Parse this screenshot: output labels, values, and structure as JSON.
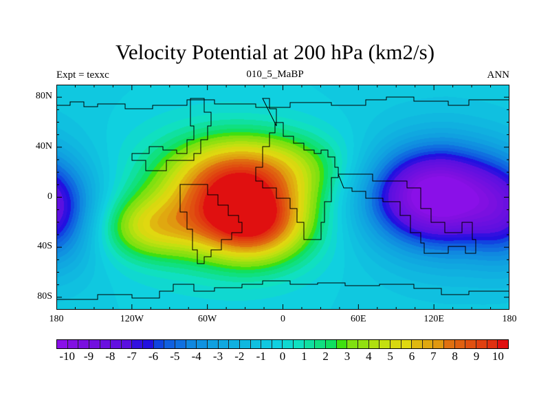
{
  "chart_data": {
    "type": "heatmap",
    "subtype": "filled-contour-map",
    "title": "Velocity Potential at 200 hPa (km2/s)",
    "left_string": "Expt = texxc",
    "center_string": "010_5_MaBP",
    "right_string": "ANN",
    "xlim": [
      -180,
      180
    ],
    "ylim": [
      -90,
      90
    ],
    "x_ticks": [
      {
        "value": -180,
        "label": "180"
      },
      {
        "value": -120,
        "label": "120W"
      },
      {
        "value": -60,
        "label": "60W"
      },
      {
        "value": 0,
        "label": "0"
      },
      {
        "value": 60,
        "label": "60E"
      },
      {
        "value": 120,
        "label": "120E"
      },
      {
        "value": 180,
        "label": "180"
      }
    ],
    "y_ticks": [
      {
        "value": 80,
        "label": "80N"
      },
      {
        "value": 40,
        "label": "40N"
      },
      {
        "value": 0,
        "label": "0"
      },
      {
        "value": -40,
        "label": "40S"
      },
      {
        "value": -80,
        "label": "80S"
      }
    ],
    "contour_levels_start": -10,
    "contour_levels_end": 10,
    "contour_interval": 0.5,
    "colorbar_labels": [
      "-10",
      "-9",
      "-8",
      "-7",
      "-6",
      "-5",
      "-4",
      "-3",
      "-2",
      "-1",
      "0",
      "1",
      "2",
      "3",
      "4",
      "5",
      "6",
      "7",
      "8",
      "9",
      "10"
    ],
    "colors": [
      "#8a10e8",
      "#8210e2",
      "#7a10e0",
      "#7210e0",
      "#6a10e0",
      "#6210e0",
      "#5a10e0",
      "#3210e0",
      "#2210e0",
      "#1044e0",
      "#1060e0",
      "#1070e0",
      "#1088e0",
      "#1092e0",
      "#10a0e0",
      "#10a8e0",
      "#10b0e0",
      "#10b8e0",
      "#10c0e0",
      "#10c8e0",
      "#10d0e0",
      "#10d8d0",
      "#10e0c0",
      "#10e0a0",
      "#10e080",
      "#10e060",
      "#40e010",
      "#80e010",
      "#92e010",
      "#b0e010",
      "#c4e010",
      "#d8d810",
      "#e0d810",
      "#e0b810",
      "#e0a810",
      "#e09810",
      "#e07010",
      "#e06010",
      "#e05010",
      "#e04010",
      "#e03010",
      "#e01010"
    ],
    "field_background": -1.2,
    "field_centers": [
      {
        "lon": -25,
        "lat": -22,
        "amp": 8.5,
        "sx": 30,
        "sy": 22
      },
      {
        "lon": -45,
        "lat": 12,
        "amp": 5.5,
        "sx": 35,
        "sy": 25
      },
      {
        "lon": -105,
        "lat": -25,
        "amp": 4.5,
        "sx": 30,
        "sy": 18
      },
      {
        "lon": 0,
        "lat": 25,
        "amp": 3.0,
        "sx": 40,
        "sy": 20
      },
      {
        "lon": -50,
        "lat": -5,
        "amp": 3.5,
        "sx": 80,
        "sy": 50
      },
      {
        "lon": 120,
        "lat": 2,
        "amp": -8.8,
        "sx": 38,
        "sy": 28
      },
      {
        "lon": 140,
        "lat": -10,
        "amp": -2.0,
        "sx": 60,
        "sy": 40
      },
      {
        "lon": -175,
        "lat": -15,
        "amp": -2.5,
        "sx": 25,
        "sy": 30
      },
      {
        "lon": 178,
        "lat": -15,
        "amp": -1.5,
        "sx": 20,
        "sy": 30
      }
    ]
  }
}
